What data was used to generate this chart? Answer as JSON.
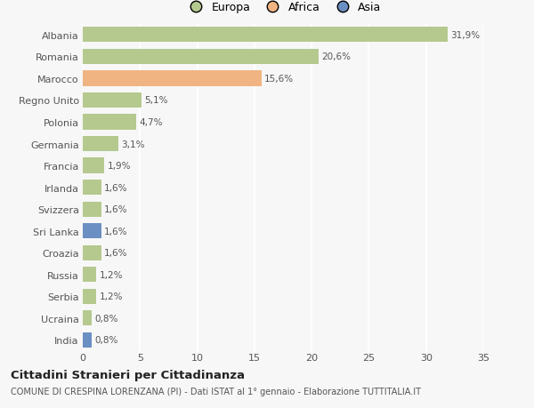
{
  "categories": [
    "Albania",
    "Romania",
    "Marocco",
    "Regno Unito",
    "Polonia",
    "Germania",
    "Francia",
    "Irlanda",
    "Svizzera",
    "Sri Lanka",
    "Croazia",
    "Russia",
    "Serbia",
    "Ucraina",
    "India"
  ],
  "values": [
    31.9,
    20.6,
    15.6,
    5.1,
    4.7,
    3.1,
    1.9,
    1.6,
    1.6,
    1.6,
    1.6,
    1.2,
    1.2,
    0.8,
    0.8
  ],
  "labels": [
    "31,9%",
    "20,6%",
    "15,6%",
    "5,1%",
    "4,7%",
    "3,1%",
    "1,9%",
    "1,6%",
    "1,6%",
    "1,6%",
    "1,6%",
    "1,2%",
    "1,2%",
    "0,8%",
    "0,8%"
  ],
  "colors": [
    "#b5c98e",
    "#b5c98e",
    "#f0b482",
    "#b5c98e",
    "#b5c98e",
    "#b5c98e",
    "#b5c98e",
    "#b5c98e",
    "#b5c98e",
    "#6b8fc2",
    "#b5c98e",
    "#b5c98e",
    "#b5c98e",
    "#b5c98e",
    "#6b8fc2"
  ],
  "legend": [
    {
      "label": "Europa",
      "color": "#b5c98e"
    },
    {
      "label": "Africa",
      "color": "#f0b482"
    },
    {
      "label": "Asia",
      "color": "#6b8fc2"
    }
  ],
  "xlim": [
    0,
    35
  ],
  "xticks": [
    0,
    5,
    10,
    15,
    20,
    25,
    30,
    35
  ],
  "title_bold": "Cittadini Stranieri per Cittadinanza",
  "subtitle": "COMUNE DI CRESPINA LORENZANA (PI) - Dati ISTAT al 1° gennaio - Elaborazione TUTTITALIA.IT",
  "bg_color": "#f7f7f7",
  "grid_color": "#ffffff",
  "bar_height": 0.7
}
